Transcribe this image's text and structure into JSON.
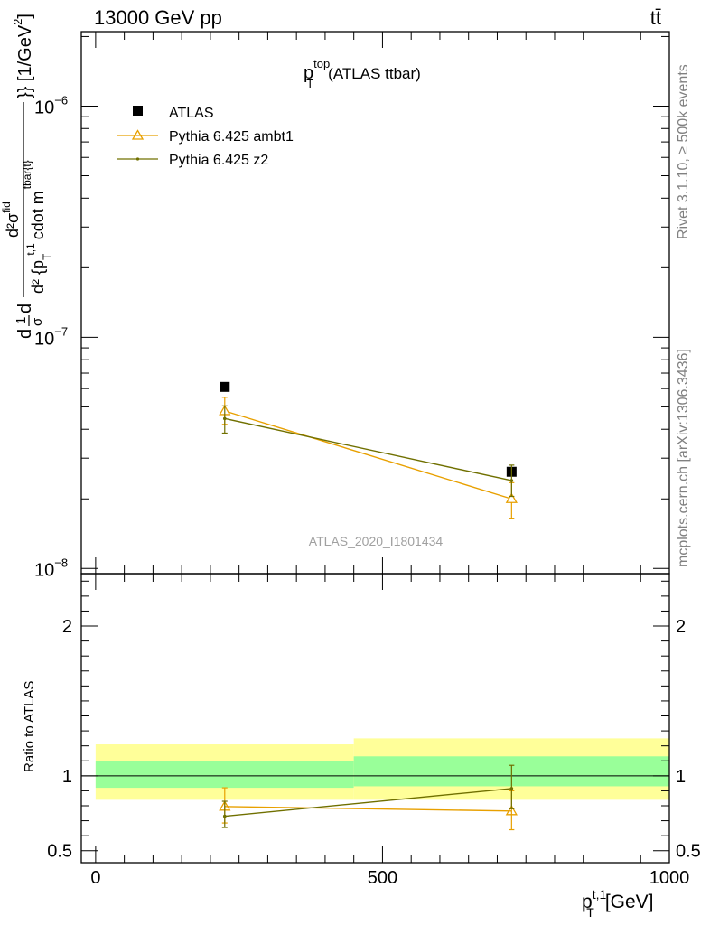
{
  "header": {
    "left": "13000 GeV pp",
    "right": "tt̄"
  },
  "side_labels": {
    "rivet": "Rivet 3.1.10, ≥ 500k events",
    "mcplots": "mcplots.cern.ch [arXiv:1306.3436]"
  },
  "chart_data": [
    {
      "type": "scatter",
      "panel": "main",
      "title_main": "p",
      "title_sup": "top",
      "title_sub": "T",
      "title_rest": "(ATLAS ttbar)",
      "watermark": "ATLAS_2020_I1801434",
      "ylabel": "d1dσd d²σfid d² {p T t,1 cdot m tbar{t}}} [1/GeV²]",
      "ylabel_parts": {
        "frac1_num": "1",
        "frac1_den": "σ",
        "frac2_num": "d²σ",
        "frac2_num_sup": "fid",
        "frac2_den": "d² {p",
        "frac2_den_sub": "T",
        "frac2_den_sup": "t,1",
        "frac2_den_rest": "cdot m",
        "frac2_den_sub2": "tbar{t}",
        "tail": "}} [1/GeV",
        "tail_sup": "2",
        "tail_end": "]"
      },
      "yscale": "log",
      "ylim": [
        9.5e-09,
        2.1e-06
      ],
      "xlim": [
        -25,
        1000
      ],
      "yticks": [
        {
          "value": 1e-08,
          "base": "10",
          "exp": "−8"
        },
        {
          "value": 1e-07,
          "base": "10",
          "exp": "−7"
        },
        {
          "value": 1e-06,
          "base": "10",
          "exp": "−6"
        }
      ],
      "legend_position": "top-left",
      "series": [
        {
          "name": "ATLAS",
          "marker": "square",
          "color": "#000000",
          "points": [
            {
              "x": 225,
              "y": 6.1e-08,
              "xerr": 225,
              "ylow": 6.1e-08,
              "yhigh": 6.1e-08
            },
            {
              "x": 725,
              "y": 2.62e-08,
              "xerr": 275,
              "ylow": 2.62e-08,
              "yhigh": 2.62e-08
            }
          ]
        },
        {
          "name": "Pythia 6.425 ambt1",
          "marker": "triangle-open",
          "color": "#e8a000",
          "points": [
            {
              "x": 225,
              "y": 4.8e-08,
              "ylow": 4.2e-08,
              "yhigh": 5.5e-08
            },
            {
              "x": 725,
              "y": 2e-08,
              "ylow": 1.65e-08,
              "yhigh": 2.35e-08
            }
          ]
        },
        {
          "name": "Pythia 6.425 z2",
          "marker": "dot",
          "color": "#707000",
          "points": [
            {
              "x": 225,
              "y": 4.45e-08,
              "ylow": 3.85e-08,
              "yhigh": 5.05e-08
            },
            {
              "x": 725,
              "y": 2.4e-08,
              "ylow": 2.05e-08,
              "yhigh": 2.8e-08
            }
          ]
        }
      ]
    },
    {
      "type": "scatter",
      "panel": "ratio",
      "ylabel": "Ratio to ATLAS",
      "xlabel_main": "p",
      "xlabel_sub": "T",
      "xlabel_sup": "t,1",
      "xlabel_rest": "[GeV]",
      "ylim": [
        0.42,
        2.35
      ],
      "xlim": [
        -25,
        1000
      ],
      "xticks": [
        {
          "value": 0,
          "label": "0"
        },
        {
          "value": 500,
          "label": "500"
        },
        {
          "value": 1000,
          "label": "1000"
        }
      ],
      "yticks": [
        {
          "value": 0.5,
          "label": "0.5"
        },
        {
          "value": 1,
          "label": "1"
        },
        {
          "value": 2,
          "label": "2"
        }
      ],
      "bands": [
        {
          "x0": 0,
          "x1": 450,
          "yellow": [
            0.84,
            1.21
          ],
          "green": [
            0.92,
            1.1
          ]
        },
        {
          "x0": 450,
          "x1": 1000,
          "yellow": [
            0.84,
            1.25
          ],
          "green": [
            0.93,
            1.13
          ]
        }
      ],
      "series": [
        {
          "name": "Pythia 6.425 ambt1",
          "marker": "triangle-open",
          "color": "#e8a000",
          "points": [
            {
              "x": 225,
              "y": 0.795,
              "ylow": 0.685,
              "yhigh": 0.92
            },
            {
              "x": 725,
              "y": 0.765,
              "ylow": 0.64,
              "yhigh": 0.9
            }
          ]
        },
        {
          "name": "Pythia 6.425 z2",
          "marker": "dot",
          "color": "#707000",
          "points": [
            {
              "x": 225,
              "y": 0.73,
              "ylow": 0.655,
              "yhigh": 0.83
            },
            {
              "x": 725,
              "y": 0.915,
              "ylow": 0.78,
              "yhigh": 1.07
            }
          ]
        }
      ]
    }
  ]
}
